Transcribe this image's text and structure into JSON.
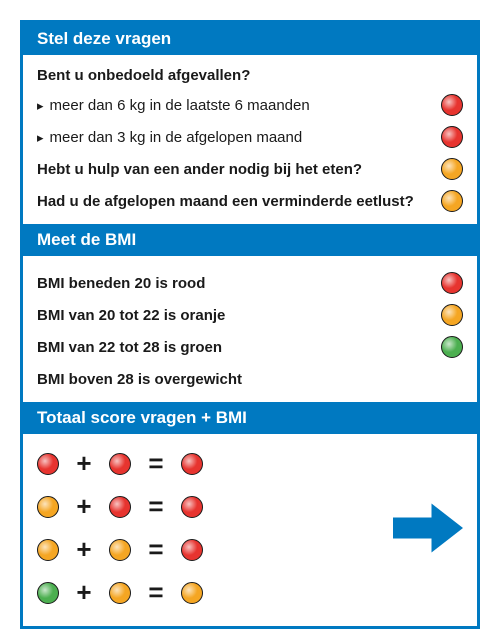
{
  "colors": {
    "brand": "#0079c1",
    "text": "#1a1a1a",
    "red": "#e7342f",
    "orange": "#f5a623",
    "green": "#4caf50",
    "dot_border": "#1a1a1a",
    "background": "#ffffff"
  },
  "sections": {
    "questions": {
      "header": "Stel deze vragen",
      "intro": "Bent u onbedoeld afgevallen?",
      "rows": [
        {
          "text": "meer dan 6 kg in de laatste 6 maanden",
          "bold": false,
          "bullet": true,
          "dot": "red"
        },
        {
          "text": "meer dan 3 kg in de afgelopen maand",
          "bold": false,
          "bullet": true,
          "dot": "red"
        },
        {
          "text": "Hebt u hulp van een ander nodig bij het eten?",
          "bold": true,
          "bullet": false,
          "dot": "orange"
        },
        {
          "text": "Had u de afgelopen maand een verminderde eetlust?",
          "bold": true,
          "bullet": false,
          "dot": "orange"
        }
      ]
    },
    "bmi": {
      "header": "Meet de BMI",
      "rows": [
        {
          "text": "BMI beneden 20 is rood",
          "dot": "red"
        },
        {
          "text": "BMI van 20 tot 22 is oranje",
          "dot": "orange"
        },
        {
          "text": "BMI van 22 tot 28 is groen",
          "dot": "green"
        },
        {
          "text": "BMI boven 28 is overgewicht",
          "dot": null
        }
      ]
    },
    "total": {
      "header": "Totaal score vragen + BMI",
      "equations": [
        {
          "a": "red",
          "b": "red",
          "result": "red"
        },
        {
          "a": "orange",
          "b": "red",
          "result": "red"
        },
        {
          "a": "orange",
          "b": "orange",
          "result": "red"
        },
        {
          "a": "green",
          "b": "orange",
          "result": "orange"
        }
      ],
      "ops": {
        "plus": "+",
        "equals": "="
      }
    }
  }
}
